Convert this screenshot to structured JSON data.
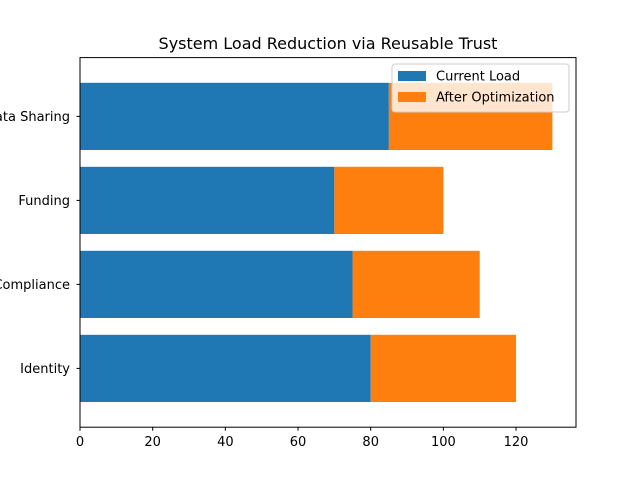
{
  "chart_data": {
    "type": "bar",
    "orientation": "horizontal",
    "stacked": true,
    "title": "System Load Reduction via Reusable Trust",
    "xlabel": "",
    "ylabel": "",
    "categories": [
      "Identity",
      "Compliance",
      "Funding",
      "Data Sharing"
    ],
    "series": [
      {
        "name": "Current Load",
        "values": [
          80,
          75,
          70,
          85
        ],
        "color": "#1f77b4"
      },
      {
        "name": "After Optimization",
        "values": [
          40,
          35,
          30,
          45
        ],
        "color": "#ff7f0e"
      }
    ],
    "xlim": [
      0,
      136.5
    ],
    "xticks": [
      0,
      20,
      40,
      60,
      80,
      100,
      120
    ],
    "grid": false,
    "legend_position": "top-right"
  }
}
